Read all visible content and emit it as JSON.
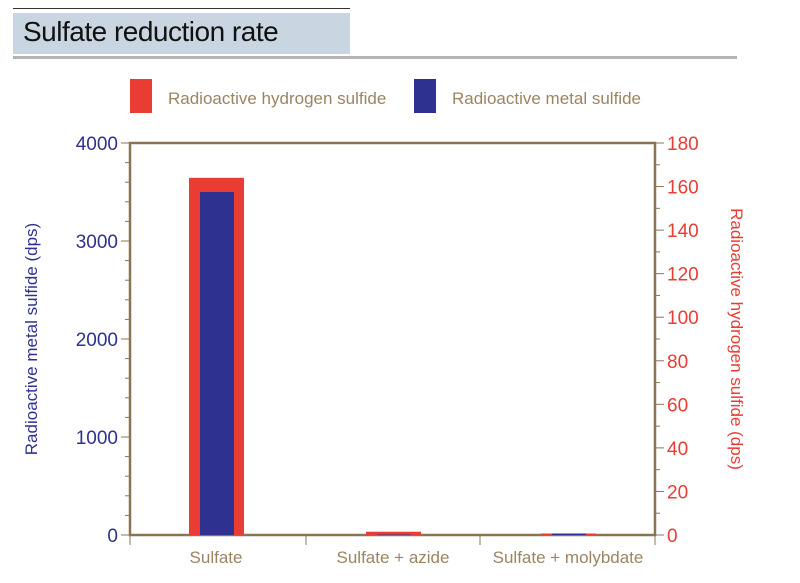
{
  "chart_data": {
    "type": "bar",
    "title": "Sulfate reduction rate",
    "categories": [
      "Sulfate",
      "Sulfate + azide",
      "Sulfate + molybdate"
    ],
    "series": [
      {
        "name": "Radioactive hydrogen sulfide",
        "axis": "right",
        "color": "#e93c33",
        "values": [
          164,
          1.5,
          0.5
        ]
      },
      {
        "name": "Radioactive metal sulfide",
        "axis": "left",
        "color": "#2e3190",
        "values": [
          3500,
          0,
          15
        ]
      }
    ],
    "ylabel_left": "Radioactive metal sulfide (dps)",
    "ylabel_right": "Radioactive hydrogen sulfide (dps)",
    "ylim_left": [
      0,
      4000
    ],
    "ylim_right": [
      0,
      180
    ],
    "yticks_left": [
      "0",
      "1000",
      "2000",
      "3000",
      "4000"
    ],
    "yticks_right": [
      "0",
      "20",
      "40",
      "60",
      "80",
      "100",
      "120",
      "140",
      "160",
      "180"
    ],
    "legend": "top",
    "grid": false
  }
}
